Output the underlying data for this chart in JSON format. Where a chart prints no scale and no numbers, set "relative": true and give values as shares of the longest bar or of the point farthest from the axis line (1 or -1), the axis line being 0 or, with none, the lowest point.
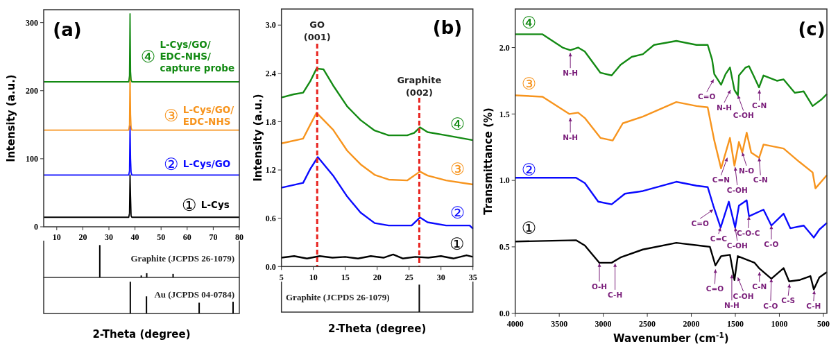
{
  "chart_data": [
    {
      "type": "line",
      "ylabel": "Intensity (a.u.)",
      "xlim": [
        5,
        80
      ],
      "xticks": [
        10,
        20,
        30,
        40,
        50,
        60,
        70,
        80
      ],
      "ylim": [
        0,
        319
      ],
      "yticks": [
        0,
        100,
        200,
        300
      ],
      "annotations": [
        "(a)"
      ],
      "series": [
        {
          "name": "① L-Cys",
          "color": "#000000",
          "x": [
            5,
            37.6,
            37.9,
            38.1,
            38.3,
            38.5,
            38.8,
            80
          ],
          "values": [
            14,
            14,
            20,
            76,
            44,
            16,
            14,
            14
          ]
        },
        {
          "name": "② L-Cys/GO",
          "color": "#0a0aff",
          "x": [
            5,
            37.6,
            37.9,
            38.1,
            38.3,
            38.5,
            38.8,
            80
          ],
          "values": [
            76,
            76,
            82,
            148,
            100,
            80,
            76,
            76
          ]
        },
        {
          "name": "③ L-Cys/GO/EDC-NHS",
          "color": "#f7941d",
          "x": [
            5,
            37.6,
            37.9,
            38.1,
            38.3,
            38.5,
            38.8,
            80
          ],
          "values": [
            142,
            142,
            150,
            224,
            165,
            146,
            142,
            142
          ]
        },
        {
          "name": "④ L-Cys/GO/EDC-NHS/capture probe",
          "color": "#138a13",
          "x": [
            5,
            37.6,
            37.9,
            38.1,
            38.3,
            38.5,
            38.8,
            80
          ],
          "values": [
            213,
            213,
            222,
            313,
            228,
            216,
            213,
            213
          ]
        }
      ]
    },
    {
      "type": "bar",
      "relative": true,
      "x": [
        26.5,
        42.4,
        44.5,
        54.6
      ],
      "values": [
        1,
        0.06,
        0.13,
        0.11
      ],
      "color": "#000000",
      "xlim": [
        5,
        80
      ],
      "annotations": [
        "Graphite (JCPDS 26-1079)"
      ]
    },
    {
      "type": "bar",
      "relative": true,
      "x": [
        38.2,
        44.4,
        64.6,
        77.6
      ],
      "values": [
        1,
        0.54,
        0.34,
        0.37
      ],
      "color": "#000000",
      "xlim": [
        5,
        80
      ],
      "xlabel": "2-Theta (degree)",
      "annotations": [
        "Au (JCPDS 04-0784)"
      ]
    },
    {
      "type": "line",
      "ylabel": "Intensity (a.u.)",
      "xlim": [
        5,
        35
      ],
      "xticks": [
        5,
        10,
        15,
        20,
        25,
        30,
        35
      ],
      "ylim": [
        0,
        3.2
      ],
      "yticks": [
        {
          "value": 0,
          "label": "0.0"
        },
        0.6,
        1.2,
        1.8,
        2.4,
        {
          "value": 3,
          "label": "3.0"
        }
      ],
      "annotations": [
        "(b)"
      ],
      "ref_lines": [
        {
          "axis": "x",
          "value": 10.6,
          "label": "GO (001)",
          "color": "#e8231f",
          "line_style": "dashed"
        },
        {
          "axis": "x",
          "value": 26.6,
          "label": "Graphite (002)",
          "color": "#e8231f",
          "line_style": "dashed"
        }
      ],
      "series": [
        {
          "name": "①",
          "color": "#000000",
          "x": [
            5,
            7,
            9,
            11,
            13,
            15,
            17,
            19,
            21,
            22.5,
            24,
            26,
            28,
            30,
            32,
            34,
            35
          ],
          "values": [
            0.11,
            0.13,
            0.1,
            0.13,
            0.11,
            0.12,
            0.1,
            0.13,
            0.11,
            0.15,
            0.1,
            0.12,
            0.11,
            0.13,
            0.1,
            0.14,
            0.12
          ]
        },
        {
          "name": "②",
          "color": "#0a0aff",
          "x": [
            5,
            8.4,
            9.5,
            10.7,
            13.1,
            15.3,
            17.4,
            19.6,
            21.8,
            25.4,
            26.7,
            27.9,
            30.8,
            34.5,
            35
          ],
          "values": [
            0.98,
            1.04,
            1.21,
            1.36,
            1.13,
            0.87,
            0.67,
            0.54,
            0.51,
            0.51,
            0.61,
            0.55,
            0.51,
            0.51,
            0.47
          ]
        },
        {
          "name": "③",
          "color": "#f7941d",
          "x": [
            5,
            8.4,
            9.5,
            10.5,
            13.1,
            15.3,
            17.4,
            19.6,
            21.8,
            24.7,
            26.7,
            27.9,
            30.8,
            35
          ],
          "values": [
            1.53,
            1.59,
            1.76,
            1.91,
            1.7,
            1.44,
            1.27,
            1.14,
            1.08,
            1.07,
            1.18,
            1.13,
            1.07,
            1.02
          ]
        },
        {
          "name": "④",
          "color": "#138a13",
          "x": [
            5,
            6.9,
            8.4,
            9.5,
            10.5,
            11.6,
            13.1,
            15.3,
            17.4,
            19.6,
            21.8,
            24.7,
            25.8,
            26.7,
            27.9,
            30.8,
            35
          ],
          "values": [
            2.1,
            2.14,
            2.16,
            2.3,
            2.46,
            2.45,
            2.25,
            1.99,
            1.82,
            1.69,
            1.63,
            1.63,
            1.66,
            1.73,
            1.67,
            1.63,
            1.57
          ]
        }
      ]
    },
    {
      "type": "bar",
      "relative": true,
      "x": [
        26.6
      ],
      "values": [
        1
      ],
      "color": "#000000",
      "xlim": [
        5,
        35
      ],
      "xlabel": "2-Theta (degree)",
      "annotations": [
        "Graphite (JCPDS 26-1079)"
      ]
    },
    {
      "type": "line",
      "xlabel": "Wavenumber (cm$^{-1}$)",
      "ylabel": "Transmittance (%)",
      "xlim": [
        4000,
        460
      ],
      "xticks": [
        4000,
        3500,
        3000,
        2500,
        2000,
        1500,
        1000,
        500
      ],
      "ylim": [
        0,
        2.29
      ],
      "yticks": [
        {
          "value": 0,
          "label": "0.0"
        },
        0.5,
        {
          "value": 1,
          "label": "1.0"
        },
        1.5,
        {
          "value": 2,
          "label": "2.0"
        }
      ],
      "annotations": [
        {
          "text": "N-H",
          "x": 3374,
          "y": 1.96
        },
        {
          "text": "C=O",
          "x": 1746,
          "y": 1.76
        },
        {
          "text": "N-H",
          "x": 1555,
          "y": 1.68
        },
        {
          "text": "C-OH",
          "x": 1471,
          "y": 1.64
        },
        {
          "text": "C-N",
          "x": 1227,
          "y": 1.68
        },
        {
          "text": "N-H",
          "x": 3374,
          "y": 1.47
        },
        {
          "text": "C=N",
          "x": 1591,
          "y": 1.17
        },
        {
          "text": "C-OH",
          "x": 1502,
          "y": 1.1
        },
        {
          "text": "N-O",
          "x": 1421,
          "y": 1.21
        },
        {
          "text": "C-N",
          "x": 1230,
          "y": 1.17
        },
        {
          "text": "C=O",
          "x": 1751,
          "y": 0.78
        },
        {
          "text": "C=C",
          "x": 1667,
          "y": 0.645
        },
        {
          "text": "C-OH",
          "x": 1502,
          "y": 0.645
        },
        {
          "text": "C-O-C",
          "x": 1345,
          "y": 0.73
        },
        {
          "text": "C-O",
          "x": 1091,
          "y": 0.66
        },
        {
          "text": "O-H",
          "x": 3044,
          "y": 0.375
        },
        {
          "text": "C-H",
          "x": 2866,
          "y": 0.375
        },
        {
          "text": "C=O",
          "x": 1725,
          "y": 0.33
        },
        {
          "text": "N-H",
          "x": 1540,
          "y": 0.29
        },
        {
          "text": "C-OH",
          "x": 1472,
          "y": 0.27
        },
        {
          "text": "C-N",
          "x": 1226,
          "y": 0.31
        },
        {
          "text": "C-O",
          "x": 1091,
          "y": 0.26
        },
        {
          "text": "C-S",
          "x": 884,
          "y": 0.22
        },
        {
          "text": "C-H",
          "x": 603,
          "y": 0.17
        },
        "(c)"
      ],
      "series": [
        {
          "name": "①",
          "color": "#000000",
          "x": [
            4000,
            3310,
            3209,
            3044,
            2905,
            2804,
            2550,
            2170,
            1789,
            1726,
            1662,
            1561,
            1510,
            1472,
            1281,
            1231,
            1091,
            952,
            889,
            774,
            647,
            609,
            546,
            460
          ],
          "values": [
            0.54,
            0.55,
            0.51,
            0.38,
            0.38,
            0.42,
            0.48,
            0.53,
            0.5,
            0.36,
            0.43,
            0.44,
            0.25,
            0.43,
            0.38,
            0.34,
            0.26,
            0.34,
            0.24,
            0.25,
            0.28,
            0.18,
            0.27,
            0.31
          ]
        },
        {
          "name": "②",
          "color": "#0a0aff",
          "x": [
            4000,
            3310,
            3209,
            3057,
            2905,
            2753,
            2550,
            2170,
            1941,
            1814,
            1750,
            1667,
            1574,
            1502,
            1459,
            1371,
            1345,
            1180,
            1091,
            952,
            876,
            723,
            609,
            546,
            460
          ],
          "values": [
            1.02,
            1.02,
            0.98,
            0.84,
            0.82,
            0.9,
            0.92,
            0.99,
            0.96,
            0.95,
            0.81,
            0.645,
            0.84,
            0.645,
            0.81,
            0.85,
            0.73,
            0.78,
            0.66,
            0.75,
            0.64,
            0.66,
            0.57,
            0.63,
            0.68
          ]
        },
        {
          "name": "③",
          "color": "#f7941d",
          "x": [
            4000,
            3690,
            3386,
            3286,
            3210,
            3032,
            2893,
            2778,
            2550,
            2170,
            1941,
            1814,
            1739,
            1662,
            1561,
            1510,
            1459,
            1421,
            1371,
            1320,
            1230,
            1180,
            952,
            774,
            622,
            590,
            460
          ],
          "values": [
            1.64,
            1.63,
            1.5,
            1.51,
            1.47,
            1.32,
            1.3,
            1.43,
            1.48,
            1.59,
            1.56,
            1.55,
            1.3,
            1.09,
            1.32,
            1.11,
            1.29,
            1.21,
            1.36,
            1.21,
            1.17,
            1.27,
            1.24,
            1.14,
            1.06,
            0.94,
            1.04
          ]
        },
        {
          "name": "④",
          "color": "#138a13",
          "x": [
            4000,
            3690,
            3462,
            3374,
            3286,
            3210,
            3032,
            2905,
            2804,
            2677,
            2550,
            2423,
            2170,
            1941,
            1814,
            1764,
            1739,
            1662,
            1611,
            1561,
            1510,
            1471,
            1459,
            1383,
            1345,
            1294,
            1231,
            1180,
            1028,
            952,
            825,
            723,
            622,
            520,
            460
          ],
          "values": [
            2.1,
            2.1,
            2.0,
            1.98,
            2.0,
            1.97,
            1.81,
            1.79,
            1.87,
            1.93,
            1.95,
            2.02,
            2.05,
            2.02,
            2.02,
            1.91,
            1.8,
            1.72,
            1.8,
            1.85,
            1.68,
            1.64,
            1.79,
            1.85,
            1.86,
            1.79,
            1.7,
            1.79,
            1.75,
            1.76,
            1.66,
            1.67,
            1.56,
            1.61,
            1.65
          ]
        }
      ]
    }
  ]
}
